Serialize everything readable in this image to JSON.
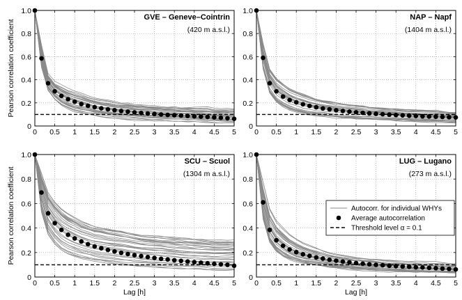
{
  "chart_data": [
    {
      "type": "line",
      "title": "GVE – Geneve–Cointrin",
      "subtitle": "(420 m a.s.l.)",
      "xlabel": "",
      "ylabel": "Pearson correlation coefficient",
      "xlim": [
        0,
        5
      ],
      "ylim": [
        0,
        1
      ],
      "xticks": [
        "0",
        "0.5",
        "1",
        "1.5",
        "2",
        "2.5",
        "3",
        "3.5",
        "4",
        "4.5",
        "5"
      ],
      "yticks": [
        "0",
        "0.2",
        "0.4",
        "0.6",
        "0.8",
        "1.0"
      ],
      "grid": true,
      "average": {
        "x": [
          0,
          0.167,
          0.333,
          0.5,
          0.667,
          0.833,
          1.0,
          1.167,
          1.333,
          1.5,
          1.667,
          1.833,
          2.0,
          2.167,
          2.333,
          2.5,
          2.667,
          2.833,
          3.0,
          3.167,
          3.333,
          3.5,
          3.667,
          3.833,
          4.0,
          4.167,
          4.333,
          4.5,
          4.667,
          4.833,
          5.0
        ],
        "y": [
          1.0,
          0.585,
          0.37,
          0.3,
          0.26,
          0.232,
          0.21,
          0.19,
          0.175,
          0.163,
          0.153,
          0.144,
          0.137,
          0.13,
          0.124,
          0.118,
          0.113,
          0.108,
          0.104,
          0.1,
          0.096,
          0.093,
          0.09,
          0.087,
          0.084,
          0.081,
          0.078,
          0.075,
          0.071,
          0.067,
          0.062
        ]
      },
      "individual_range": {
        "upper": [
          1.0,
          0.7,
          0.45,
          0.38,
          0.35,
          0.32,
          0.3,
          0.28,
          0.26,
          0.24,
          0.23,
          0.22,
          0.21,
          0.2,
          0.2,
          0.19,
          0.19,
          0.18,
          0.18,
          0.17,
          0.17,
          0.17,
          0.16,
          0.16,
          0.16,
          0.16,
          0.16,
          0.15,
          0.15,
          0.15,
          0.15
        ],
        "lower": [
          1.0,
          0.5,
          0.3,
          0.22,
          0.17,
          0.14,
          0.12,
          0.11,
          0.1,
          0.09,
          0.08,
          0.075,
          0.07,
          0.065,
          0.06,
          0.058,
          0.055,
          0.052,
          0.05,
          0.048,
          0.046,
          0.044,
          0.042,
          0.04,
          0.038,
          0.036,
          0.034,
          0.032,
          0.03,
          0.028,
          0.025
        ]
      },
      "threshold": 0.1
    },
    {
      "type": "line",
      "title": "NAP – Napf",
      "subtitle": "(1404 m a.s.l.)",
      "xlabel": "",
      "ylabel": "",
      "xlim": [
        0,
        5
      ],
      "ylim": [
        0,
        1
      ],
      "xticks": [
        "0",
        "0.5",
        "1",
        "1.5",
        "2",
        "2.5",
        "3",
        "3.5",
        "4",
        "4.5",
        "5"
      ],
      "yticks": [
        "0",
        "0.2",
        "0.4",
        "0.6",
        "0.8",
        "1.0"
      ],
      "grid": true,
      "average": {
        "x": [
          0,
          0.167,
          0.333,
          0.5,
          0.667,
          0.833,
          1.0,
          1.167,
          1.333,
          1.5,
          1.667,
          1.833,
          2.0,
          2.167,
          2.333,
          2.5,
          2.667,
          2.833,
          3.0,
          3.167,
          3.333,
          3.5,
          3.667,
          3.833,
          4.0,
          4.167,
          4.333,
          4.5,
          4.667,
          4.833,
          5.0
        ],
        "y": [
          1.0,
          0.59,
          0.37,
          0.3,
          0.255,
          0.225,
          0.205,
          0.188,
          0.174,
          0.162,
          0.152,
          0.144,
          0.136,
          0.13,
          0.124,
          0.119,
          0.114,
          0.11,
          0.106,
          0.102,
          0.098,
          0.095,
          0.092,
          0.089,
          0.087,
          0.084,
          0.082,
          0.08,
          0.078,
          0.076,
          0.074
        ]
      },
      "individual_range": {
        "upper": [
          1.0,
          0.72,
          0.5,
          0.42,
          0.37,
          0.33,
          0.3,
          0.28,
          0.26,
          0.24,
          0.23,
          0.22,
          0.21,
          0.2,
          0.19,
          0.185,
          0.18,
          0.17,
          0.165,
          0.16,
          0.155,
          0.15,
          0.145,
          0.14,
          0.14,
          0.135,
          0.13,
          0.13,
          0.125,
          0.12,
          0.12
        ],
        "lower": [
          1.0,
          0.48,
          0.28,
          0.2,
          0.16,
          0.13,
          0.115,
          0.1,
          0.09,
          0.085,
          0.08,
          0.075,
          0.07,
          0.065,
          0.062,
          0.058,
          0.055,
          0.052,
          0.05,
          0.048,
          0.046,
          0.044,
          0.042,
          0.04,
          0.038,
          0.037,
          0.036,
          0.035,
          0.034,
          0.033,
          0.032
        ]
      },
      "threshold": 0.1
    },
    {
      "type": "line",
      "title": "SCU – Scuol",
      "subtitle": "(1304 m a.s.l.)",
      "xlabel": "Lag [h]",
      "ylabel": "Pearson correlation coefficient",
      "xlim": [
        0,
        5
      ],
      "ylim": [
        0,
        1
      ],
      "xticks": [
        "0",
        "0.5",
        "1",
        "1.5",
        "2",
        "2.5",
        "3",
        "3.5",
        "4",
        "4.5",
        "5"
      ],
      "yticks": [
        "0",
        "0.2",
        "0.4",
        "0.6",
        "0.8",
        "1.0"
      ],
      "grid": true,
      "average": {
        "x": [
          0,
          0.167,
          0.333,
          0.5,
          0.667,
          0.833,
          1.0,
          1.167,
          1.333,
          1.5,
          1.667,
          1.833,
          2.0,
          2.167,
          2.333,
          2.5,
          2.667,
          2.833,
          3.0,
          3.167,
          3.333,
          3.5,
          3.667,
          3.833,
          4.0,
          4.167,
          4.333,
          4.5,
          4.667,
          4.833,
          5.0
        ],
        "y": [
          1.0,
          0.69,
          0.52,
          0.44,
          0.385,
          0.345,
          0.315,
          0.29,
          0.268,
          0.25,
          0.235,
          0.221,
          0.209,
          0.198,
          0.188,
          0.179,
          0.171,
          0.163,
          0.156,
          0.149,
          0.143,
          0.137,
          0.132,
          0.127,
          0.122,
          0.117,
          0.112,
          0.108,
          0.104,
          0.1,
          0.092
        ]
      },
      "individual_range": {
        "upper": [
          1.0,
          0.85,
          0.7,
          0.62,
          0.56,
          0.52,
          0.49,
          0.46,
          0.44,
          0.42,
          0.41,
          0.4,
          0.39,
          0.38,
          0.37,
          0.36,
          0.35,
          0.345,
          0.34,
          0.335,
          0.33,
          0.325,
          0.32,
          0.315,
          0.31,
          0.31,
          0.305,
          0.3,
          0.3,
          0.3,
          0.3
        ],
        "lower": [
          1.0,
          0.5,
          0.32,
          0.24,
          0.19,
          0.16,
          0.14,
          0.125,
          0.115,
          0.105,
          0.098,
          0.092,
          0.086,
          0.08,
          0.076,
          0.072,
          0.068,
          0.065,
          0.062,
          0.059,
          0.056,
          0.054,
          0.052,
          0.05,
          0.048,
          0.046,
          0.044,
          0.043,
          0.042,
          0.041,
          0.04
        ]
      },
      "threshold": 0.1
    },
    {
      "type": "line",
      "title": "LUG – Lugano",
      "subtitle": "(273 m a.s.l.)",
      "xlabel": "Lag [h]",
      "ylabel": "",
      "xlim": [
        0,
        5
      ],
      "ylim": [
        0,
        1
      ],
      "xticks": [
        "0",
        "0.5",
        "1",
        "1.5",
        "2",
        "2.5",
        "3",
        "3.5",
        "4",
        "4.5",
        "5"
      ],
      "yticks": [
        "0",
        "0.2",
        "0.4",
        "0.6",
        "0.8",
        "1.0"
      ],
      "grid": true,
      "legend": {
        "placement": "right",
        "entries": [
          "Autocorr. for individual WHYs",
          "Average autocorrelation",
          "Threshold level α = 0.1"
        ]
      },
      "average": {
        "x": [
          0,
          0.167,
          0.333,
          0.5,
          0.667,
          0.833,
          1.0,
          1.167,
          1.333,
          1.5,
          1.667,
          1.833,
          2.0,
          2.167,
          2.333,
          2.5,
          2.667,
          2.833,
          3.0,
          3.167,
          3.333,
          3.5,
          3.667,
          3.833,
          4.0,
          4.167,
          4.333,
          4.5,
          4.667,
          4.833,
          5.0
        ],
        "y": [
          1.0,
          0.61,
          0.385,
          0.3,
          0.255,
          0.225,
          0.203,
          0.186,
          0.172,
          0.16,
          0.15,
          0.141,
          0.133,
          0.126,
          0.12,
          0.114,
          0.109,
          0.104,
          0.1,
          0.096,
          0.092,
          0.089,
          0.086,
          0.083,
          0.08,
          0.078,
          0.075,
          0.072,
          0.069,
          0.066,
          0.062
        ]
      },
      "individual_range": {
        "upper": [
          1.0,
          0.78,
          0.56,
          0.46,
          0.4,
          0.35,
          0.31,
          0.28,
          0.26,
          0.24,
          0.22,
          0.2,
          0.19,
          0.18,
          0.17,
          0.165,
          0.16,
          0.155,
          0.15,
          0.145,
          0.14,
          0.14,
          0.135,
          0.13,
          0.13,
          0.125,
          0.12,
          0.12,
          0.115,
          0.11,
          0.11
        ],
        "lower": [
          1.0,
          0.45,
          0.26,
          0.19,
          0.15,
          0.125,
          0.11,
          0.1,
          0.09,
          0.085,
          0.08,
          0.074,
          0.068,
          0.062,
          0.058,
          0.054,
          0.05,
          0.047,
          0.045,
          0.042,
          0.04,
          0.038,
          0.036,
          0.034,
          0.032,
          0.031,
          0.03,
          0.029,
          0.028,
          0.027,
          0.026
        ]
      },
      "threshold": 0.1
    }
  ],
  "colors": {
    "individual": "#8a8a8a",
    "average": "#000000",
    "threshold": "#000000",
    "grid": "#9a9a9a"
  }
}
